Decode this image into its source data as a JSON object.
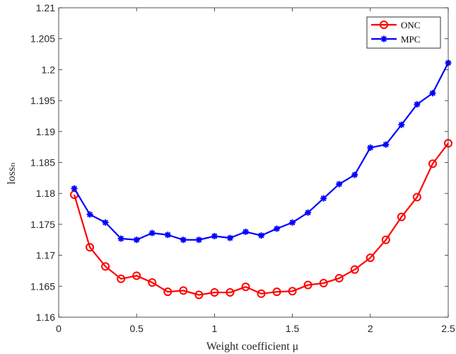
{
  "chart_data": {
    "type": "line",
    "xlabel": "Weight coefficient μ",
    "ylabel": "lossₙ",
    "xlim": [
      0,
      2.5
    ],
    "ylim": [
      1.16,
      1.21
    ],
    "xticks": [
      0,
      0.5,
      1,
      1.5,
      2,
      2.5
    ],
    "xtick_labels": [
      "0",
      "0.5",
      "1",
      "1.5",
      "2",
      "2.5"
    ],
    "yticks": [
      1.16,
      1.165,
      1.17,
      1.175,
      1.18,
      1.185,
      1.19,
      1.195,
      1.2,
      1.205,
      1.21
    ],
    "ytick_labels": [
      "1.16",
      "1.165",
      "1.17",
      "1.175",
      "1.18",
      "1.185",
      "1.19",
      "1.195",
      "1.2",
      "1.205",
      "1.21"
    ],
    "grid": false,
    "legend_position": "top-right",
    "x": [
      0.1,
      0.2,
      0.3,
      0.4,
      0.5,
      0.6,
      0.7,
      0.8,
      0.9,
      1.0,
      1.1,
      1.2,
      1.3,
      1.4,
      1.5,
      1.6,
      1.7,
      1.8,
      1.9,
      2.0,
      2.1,
      2.2,
      2.3,
      2.4,
      2.5
    ],
    "series": [
      {
        "name": "ONC",
        "color": "#ff0000",
        "marker": "circle",
        "values": [
          1.1798,
          1.1713,
          1.1682,
          1.1662,
          1.1667,
          1.1656,
          1.1641,
          1.1643,
          1.1636,
          1.164,
          1.164,
          1.1649,
          1.1638,
          1.1641,
          1.1642,
          1.1652,
          1.1655,
          1.1663,
          1.1677,
          1.1696,
          1.1725,
          1.1762,
          1.1794,
          1.1848,
          1.1881
        ]
      },
      {
        "name": "MPC",
        "color": "#0000ff",
        "marker": "asterisk",
        "values": [
          1.1808,
          1.1766,
          1.1753,
          1.1727,
          1.1725,
          1.1736,
          1.1733,
          1.1725,
          1.1725,
          1.1731,
          1.1728,
          1.1738,
          1.1732,
          1.1743,
          1.1753,
          1.1769,
          1.1792,
          1.1815,
          1.183,
          1.1874,
          1.1879,
          1.1911,
          1.1944,
          1.1962,
          1.2011
        ]
      }
    ]
  }
}
